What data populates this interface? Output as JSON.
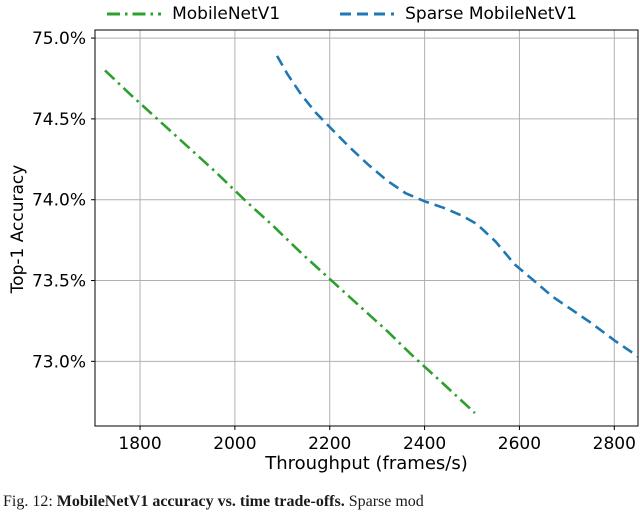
{
  "chart_data": {
    "type": "line",
    "title": "",
    "xlabel": "Throughput (frames/s)",
    "ylabel": "Top-1 Accuracy",
    "xlim": [
      1705,
      2850
    ],
    "ylim": [
      72.6,
      75.05
    ],
    "xticks": [
      1800,
      2000,
      2200,
      2400,
      2600,
      2800
    ],
    "xtick_labels": [
      "1800",
      "2000",
      "2200",
      "2400",
      "2600",
      "2800"
    ],
    "yticks": [
      73.0,
      73.5,
      74.0,
      74.5,
      75.0
    ],
    "ytick_labels": [
      "73.0%",
      "73.5%",
      "74.0%",
      "74.5%",
      "75.0%"
    ],
    "grid": true,
    "grid_color": "#b0b0b0",
    "legend_position": "top",
    "series": [
      {
        "name": "MobileNetV1",
        "color": "#2ca02c",
        "style": "dashdot",
        "points": [
          [
            1726,
            74.8
          ],
          [
            1780,
            74.65
          ],
          [
            1840,
            74.49
          ],
          [
            1900,
            74.33
          ],
          [
            1960,
            74.17
          ],
          [
            2020,
            74.0
          ],
          [
            2080,
            73.84
          ],
          [
            2140,
            73.67
          ],
          [
            2200,
            73.51
          ],
          [
            2260,
            73.35
          ],
          [
            2320,
            73.19
          ],
          [
            2380,
            73.02
          ],
          [
            2440,
            72.86
          ],
          [
            2506,
            72.68
          ]
        ]
      },
      {
        "name": "Sparse MobileNetV1",
        "color": "#1f77b4",
        "style": "dashed",
        "points": [
          [
            2089,
            74.89
          ],
          [
            2110,
            74.78
          ],
          [
            2140,
            74.65
          ],
          [
            2170,
            74.54
          ],
          [
            2200,
            74.45
          ],
          [
            2240,
            74.33
          ],
          [
            2280,
            74.22
          ],
          [
            2320,
            74.12
          ],
          [
            2360,
            74.04
          ],
          [
            2400,
            73.99
          ],
          [
            2440,
            73.95
          ],
          [
            2480,
            73.9
          ],
          [
            2510,
            73.85
          ],
          [
            2550,
            73.74
          ],
          [
            2590,
            73.6
          ],
          [
            2630,
            73.5
          ],
          [
            2670,
            73.4
          ],
          [
            2710,
            73.32
          ],
          [
            2750,
            73.24
          ],
          [
            2800,
            73.13
          ],
          [
            2850,
            73.03
          ]
        ]
      }
    ]
  },
  "caption": {
    "prefix": "Fig. 12:",
    "bold": "MobileNetV1 accuracy vs. time trade-offs.",
    "rest": "Sparse mod"
  }
}
